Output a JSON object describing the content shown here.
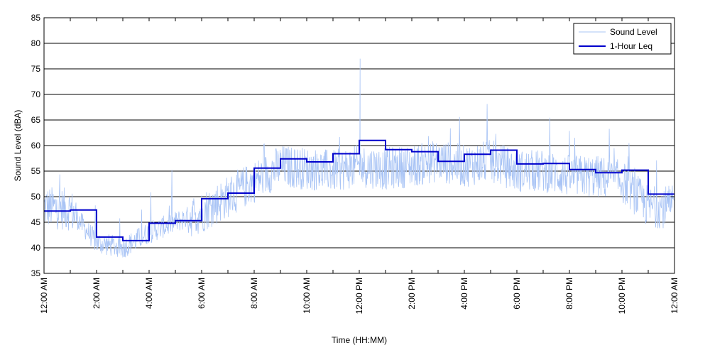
{
  "chart_data": {
    "type": "line",
    "xlabel": "Time (HH:MM)",
    "ylabel": "Sound Level (dBA)",
    "ylim": [
      35,
      85
    ],
    "yticks": [
      35,
      40,
      45,
      50,
      55,
      60,
      65,
      70,
      75,
      80,
      85
    ],
    "xlim": [
      0,
      24
    ],
    "xtick_labels": [
      "12:00 AM",
      "2:00 AM",
      "4:00 AM",
      "6:00 AM",
      "8:00 AM",
      "10:00 AM",
      "12:00 PM",
      "2:00 PM",
      "4:00 PM",
      "6:00 PM",
      "8:00 PM",
      "10:00 PM",
      "12:00 AM"
    ],
    "grid": "horizontal",
    "legend_position": "top-right",
    "series": [
      {
        "name": "Sound Level",
        "color": "#a9c4f5",
        "style": "thin-line",
        "base_hourly": [
          48,
          47.5,
          41,
          40,
          43,
          45,
          47,
          50,
          53,
          56,
          55.5,
          55,
          56,
          55.5,
          56,
          57,
          56,
          57,
          55,
          55,
          54,
          54,
          53,
          48
        ],
        "range": [
          37,
          77
        ]
      },
      {
        "name": "1-Hour Leq",
        "color": "#0000cc",
        "style": "step",
        "hours": [
          0,
          1,
          2,
          3,
          4,
          5,
          6,
          7,
          8,
          9,
          10,
          11,
          12,
          13,
          14,
          15,
          16,
          17,
          18,
          19,
          20,
          21,
          22,
          23
        ],
        "values": [
          47.2,
          47.4,
          42.1,
          41.4,
          44.8,
          45.3,
          49.6,
          50.7,
          55.6,
          57.4,
          56.8,
          58.4,
          61.0,
          59.2,
          58.8,
          56.9,
          58.3,
          59.1,
          56.4,
          56.5,
          55.3,
          54.7,
          55.2,
          50.5
        ]
      }
    ]
  }
}
